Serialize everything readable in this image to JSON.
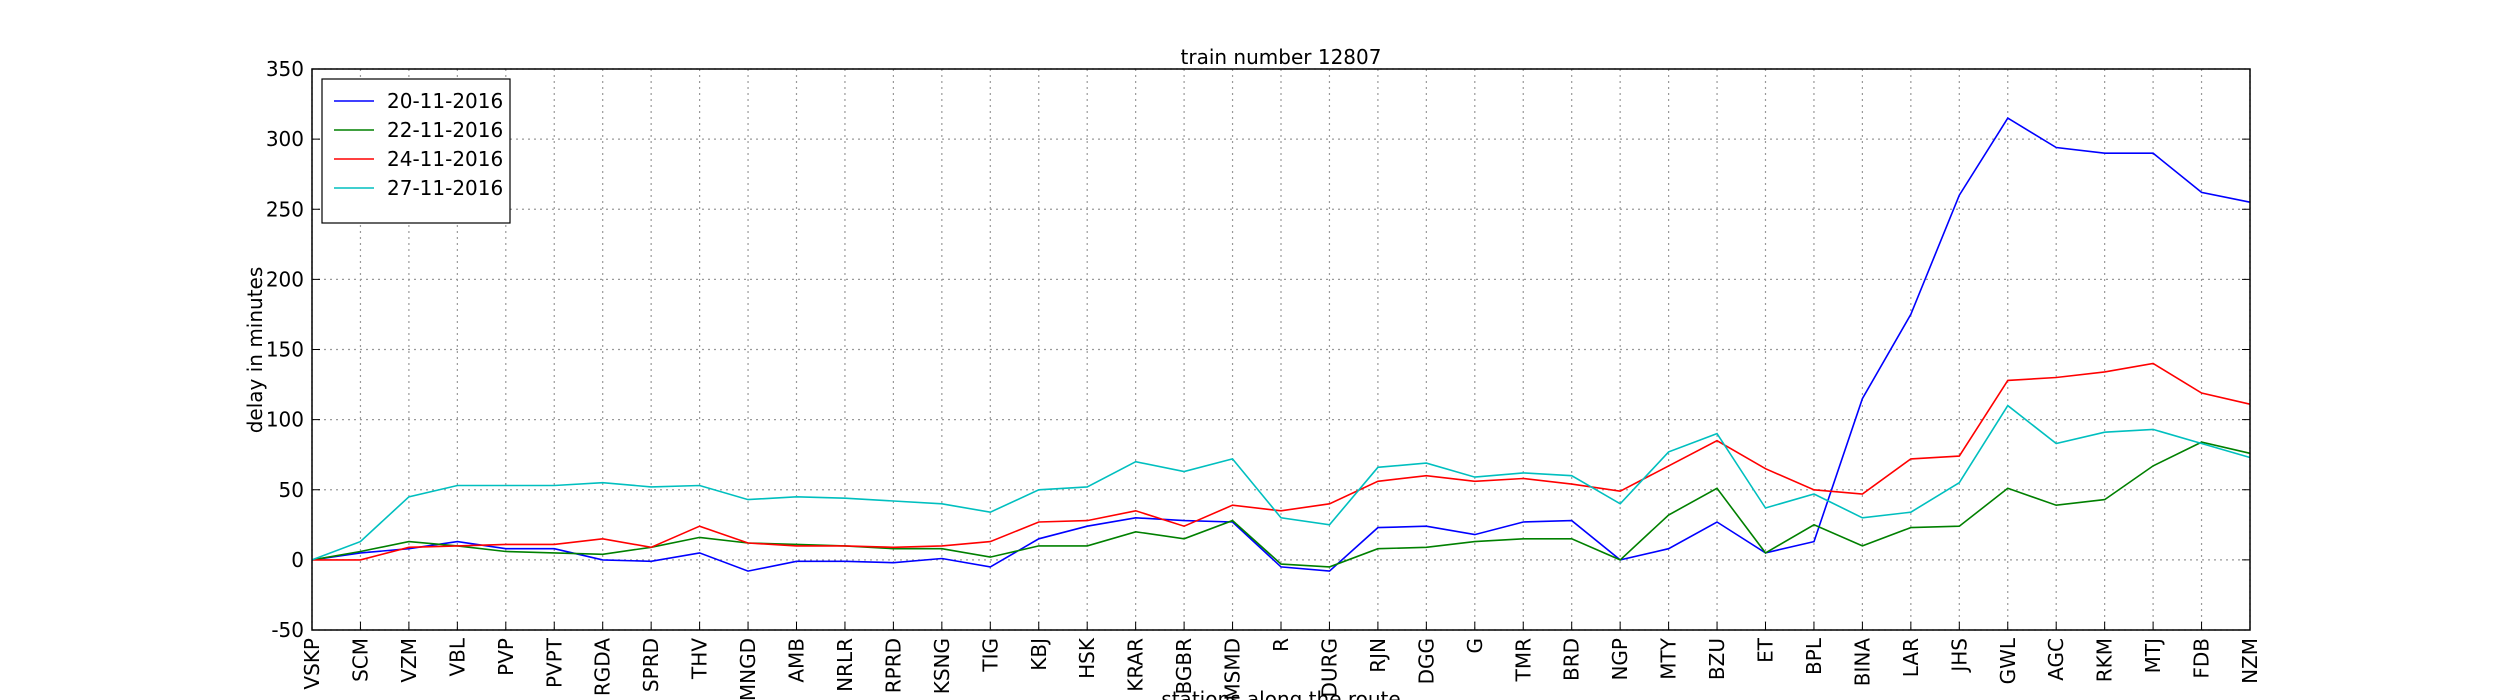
{
  "chart_data": {
    "type": "line",
    "title": "train number 12807",
    "xlabel": "stations along the route",
    "ylabel": "delay in minutes",
    "categories": [
      "VSKP",
      "SCM",
      "VZM",
      "VBL",
      "PVP",
      "PVPT",
      "RGDA",
      "SPRD",
      "THV",
      "MNGD",
      "AMB",
      "NRLR",
      "RPRD",
      "KSNG",
      "TIG",
      "KBJ",
      "HSK",
      "KRAR",
      "BGBR",
      "MSMD",
      "R",
      "DURG",
      "RJN",
      "DGG",
      "G",
      "TMR",
      "BRD",
      "NGP",
      "MTY",
      "BZU",
      "ET",
      "BPL",
      "BINA",
      "LAR",
      "JHS",
      "GWL",
      "AGC",
      "RKM",
      "MTJ",
      "FDB",
      "NZM"
    ],
    "series": [
      {
        "name": "20-11-2016",
        "color": "#0000ff",
        "values": [
          0,
          5,
          8,
          13,
          8,
          8,
          0,
          -1,
          5,
          -8,
          -1,
          -1,
          -2,
          1,
          -5,
          15,
          24,
          30,
          28,
          27,
          -5,
          -8,
          23,
          24,
          18,
          27,
          28,
          0,
          8,
          27,
          5,
          13,
          115,
          175,
          260,
          315,
          294,
          290,
          290,
          262,
          255
        ]
      },
      {
        "name": "22-11-2016",
        "color": "#008000",
        "values": [
          0,
          6,
          13,
          10,
          6,
          5,
          4,
          9,
          16,
          12,
          11,
          10,
          8,
          8,
          2,
          10,
          10,
          20,
          15,
          28,
          -3,
          -5,
          8,
          9,
          13,
          15,
          15,
          0,
          32,
          51,
          5,
          25,
          10,
          23,
          24,
          51,
          39,
          43,
          67,
          84,
          76
        ]
      },
      {
        "name": "24-11-2016",
        "color": "#ff0000",
        "values": [
          0,
          0,
          9,
          10,
          11,
          11,
          15,
          9,
          24,
          12,
          10,
          10,
          9,
          10,
          13,
          27,
          28,
          35,
          24,
          39,
          35,
          40,
          56,
          60,
          56,
          58,
          54,
          49,
          67,
          85,
          65,
          50,
          47,
          72,
          74,
          128,
          130,
          134,
          140,
          119,
          111
        ]
      },
      {
        "name": "27-11-2016",
        "color": "#00bfbf",
        "values": [
          0,
          13,
          45,
          53,
          53,
          53,
          55,
          52,
          53,
          43,
          45,
          44,
          42,
          40,
          34,
          50,
          52,
          70,
          63,
          72,
          30,
          25,
          66,
          69,
          59,
          62,
          60,
          40,
          77,
          90,
          37,
          47,
          30,
          34,
          55,
          110,
          83,
          91,
          93,
          83,
          73
        ]
      }
    ],
    "ylim": [
      -50,
      350
    ],
    "yticks": [
      -50,
      0,
      50,
      100,
      150,
      200,
      250,
      300,
      350
    ],
    "grid": true,
    "legend": "upper-left"
  }
}
